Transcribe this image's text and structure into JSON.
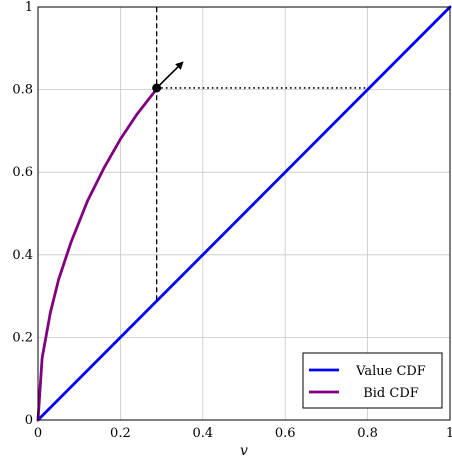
{
  "chart_data": {
    "type": "line",
    "xlabel": "v",
    "ylabel": "",
    "xlim": [
      0,
      1
    ],
    "ylim": [
      0,
      1
    ],
    "xticks": [
      "0",
      "0.2",
      "0.4",
      "0.6",
      "0.8",
      "1"
    ],
    "yticks": [
      "0",
      "0.2",
      "0.4",
      "0.6",
      "0.8",
      "1"
    ],
    "grid": true,
    "legend_position": "bottom-right",
    "series": [
      {
        "name": "Value CDF",
        "color": "#0000ff",
        "points": [
          [
            0,
            0
          ],
          [
            1,
            1
          ]
        ]
      },
      {
        "name": "Bid CDF",
        "color": "#800080",
        "points": [
          [
            0,
            0
          ],
          [
            0.01,
            0.15
          ],
          [
            0.03,
            0.26
          ],
          [
            0.05,
            0.34
          ],
          [
            0.08,
            0.43
          ],
          [
            0.12,
            0.53
          ],
          [
            0.16,
            0.61
          ],
          [
            0.2,
            0.68
          ],
          [
            0.24,
            0.74
          ],
          [
            0.29,
            0.804
          ]
        ]
      }
    ],
    "annotations": {
      "marker_point": [
        0.288,
        0.804
      ],
      "arrow_to": [
        0.35,
        0.865
      ],
      "dashed_vertical": {
        "x": 0.288,
        "y_from": 0.29,
        "y_to": 1
      },
      "dotted_horizontal": {
        "y": 0.804,
        "x_from": 0.288,
        "x_to": 0.8
      }
    }
  }
}
